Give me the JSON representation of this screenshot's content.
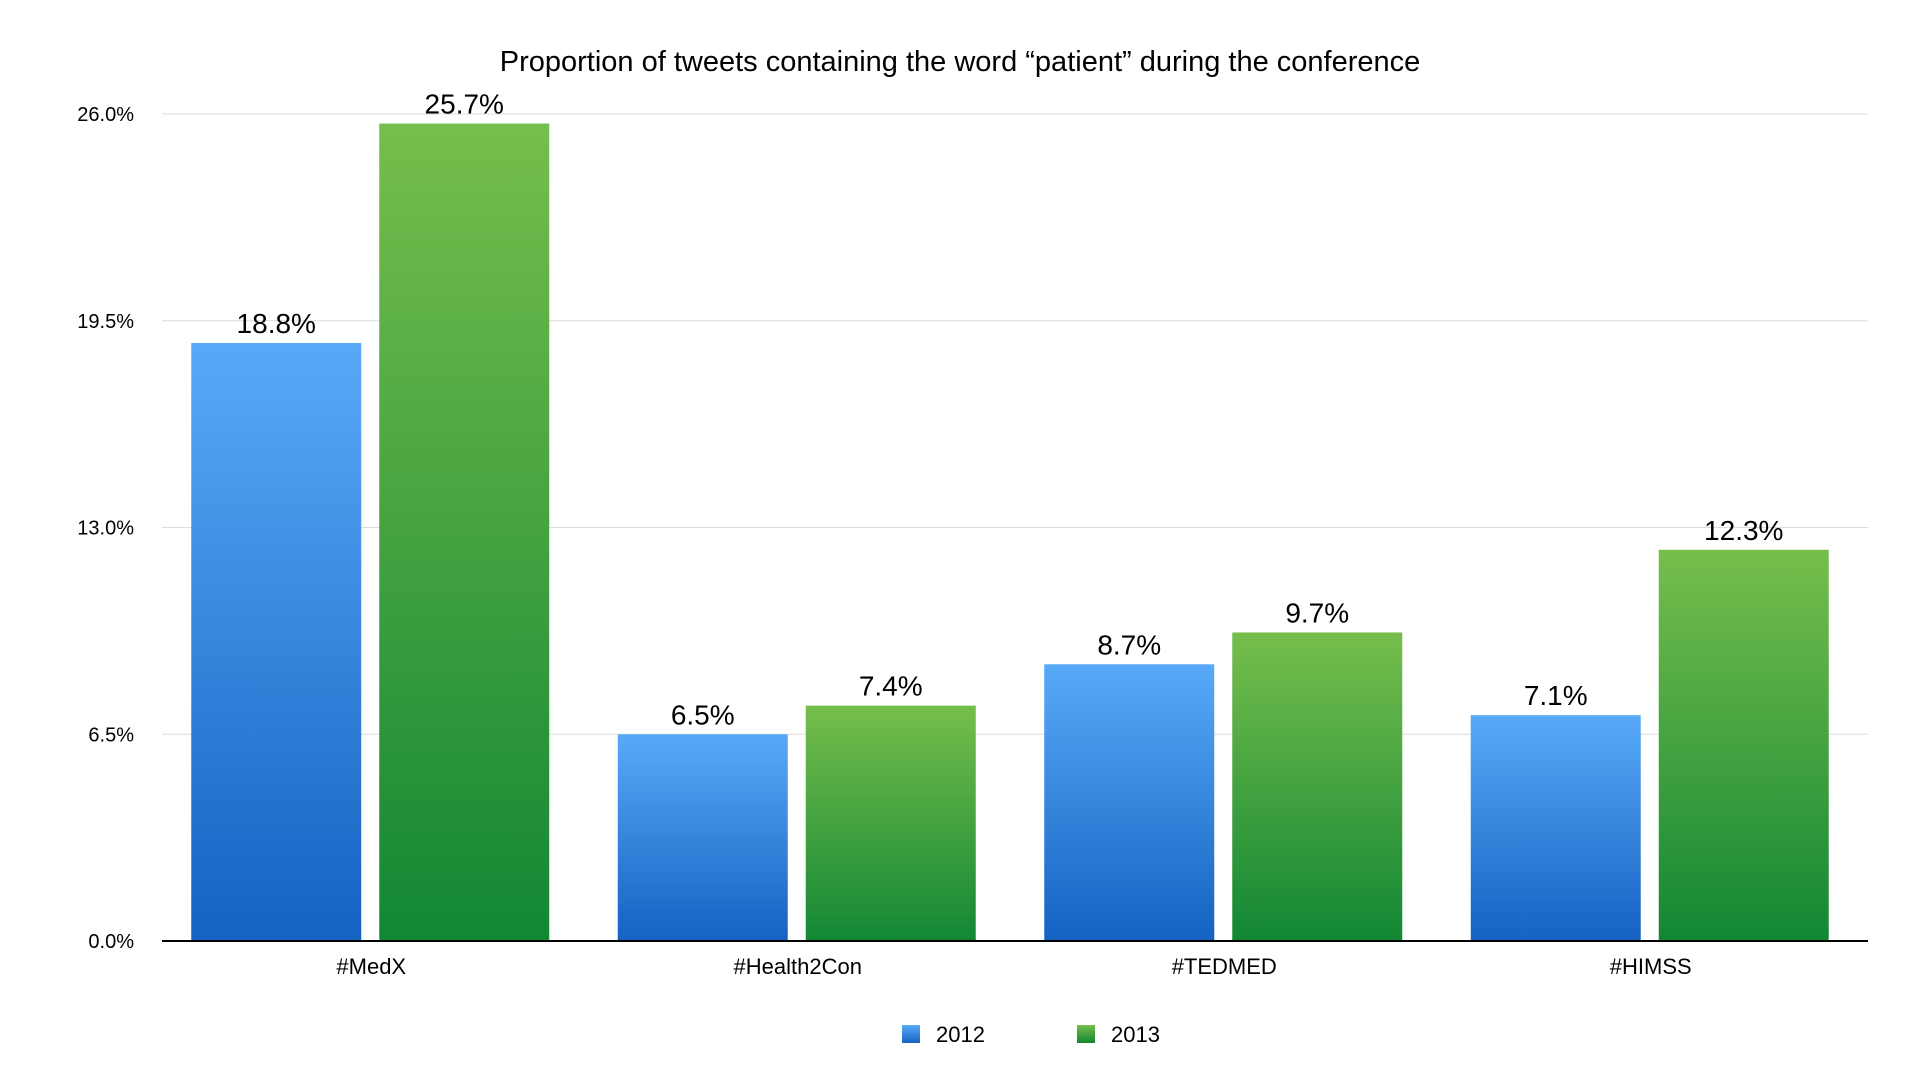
{
  "chart_data": {
    "type": "bar",
    "title": "Proportion of tweets containing the word “patient” during the conference",
    "xlabel": "",
    "ylabel": "",
    "categories": [
      "#MedX",
      "#Health2Con",
      "#TEDMED",
      "#HIMSS"
    ],
    "series": [
      {
        "name": "2012",
        "values": [
          18.8,
          6.5,
          8.7,
          7.1
        ],
        "color": "#2a7fd6"
      },
      {
        "name": "2013",
        "values": [
          25.7,
          7.4,
          9.7,
          12.3
        ],
        "color": "#3a9d3c"
      }
    ],
    "data_labels": [
      [
        "18.8%",
        "6.5%",
        "8.7%",
        "7.1%"
      ],
      [
        "25.7%",
        "7.4%",
        "9.7%",
        "12.3%"
      ]
    ],
    "y_ticks": [
      "0.0%",
      "6.5%",
      "13.0%",
      "19.5%",
      "26.0%"
    ],
    "y_tick_values": [
      0,
      6.5,
      13,
      19.5,
      26
    ],
    "ylim": [
      0,
      26
    ],
    "grid": true,
    "legend_position": "bottom-center"
  }
}
